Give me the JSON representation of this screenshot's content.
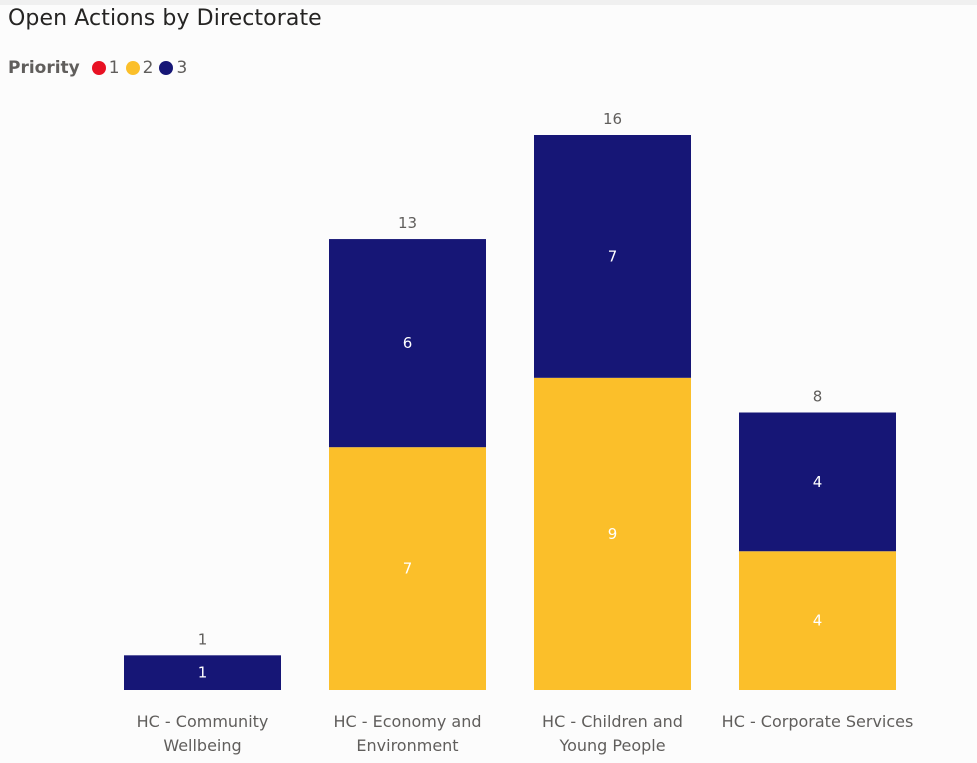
{
  "title": "Open Actions by Directorate",
  "legend": {
    "title": "Priority",
    "items": [
      {
        "label": "1",
        "color": "#e81123"
      },
      {
        "label": "2",
        "color": "#fbbf2a"
      },
      {
        "label": "3",
        "color": "#161676"
      }
    ]
  },
  "chart_data": {
    "type": "bar",
    "stacked": true,
    "categories": [
      [
        "HC - Community",
        "Wellbeing"
      ],
      [
        "HC - Economy and",
        "Environment"
      ],
      [
        "HC - Children and",
        "Young People"
      ],
      [
        "HC - Corporate Services"
      ]
    ],
    "series": [
      {
        "name": "1",
        "color": "#e81123",
        "values": [
          0,
          0,
          0,
          0
        ]
      },
      {
        "name": "2",
        "color": "#fbbf2a",
        "values": [
          0,
          7,
          9,
          4
        ]
      },
      {
        "name": "3",
        "color": "#161676",
        "values": [
          1,
          6,
          7,
          4
        ]
      }
    ],
    "totals": [
      1,
      13,
      16,
      8
    ],
    "ylim": [
      0,
      16
    ],
    "grid": false,
    "legend_position": "top-left"
  }
}
